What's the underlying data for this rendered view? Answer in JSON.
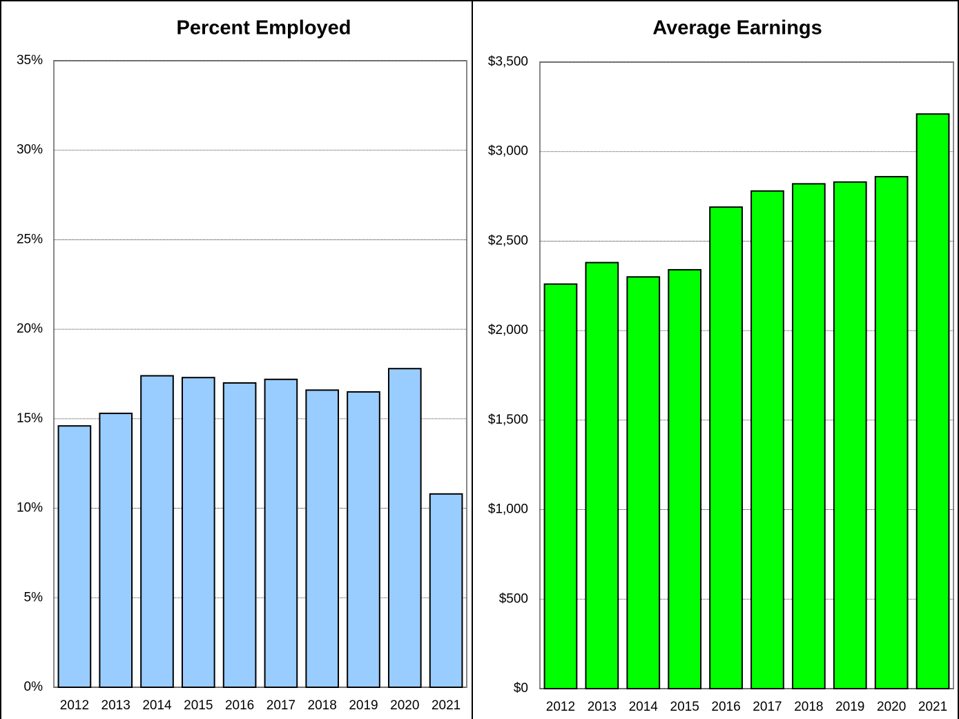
{
  "chart_data": [
    {
      "type": "bar",
      "title": "Percent Employed",
      "categories": [
        "2012",
        "2013",
        "2014",
        "2015",
        "2016",
        "2017",
        "2018",
        "2019",
        "2020",
        "2021"
      ],
      "values": [
        14.6,
        15.3,
        17.4,
        17.3,
        17.0,
        17.2,
        16.6,
        16.5,
        17.8,
        10.8
      ],
      "color": "#99ccff",
      "ylim": [
        0,
        35
      ],
      "yticks": [
        {
          "value": 0,
          "label": "0%"
        },
        {
          "value": 5,
          "label": "5%"
        },
        {
          "value": 10,
          "label": "10%"
        },
        {
          "value": 15,
          "label": "15%"
        },
        {
          "value": 20,
          "label": "20%"
        },
        {
          "value": 25,
          "label": "25%"
        },
        {
          "value": 30,
          "label": "30%"
        },
        {
          "value": 35,
          "label": "35%"
        }
      ],
      "grid": true
    },
    {
      "type": "bar",
      "title": "Average Earnings",
      "categories": [
        "2012",
        "2013",
        "2014",
        "2015",
        "2016",
        "2017",
        "2018",
        "2019",
        "2020",
        "2021"
      ],
      "values": [
        2260,
        2380,
        2300,
        2340,
        2690,
        2780,
        2820,
        2830,
        2860,
        3210
      ],
      "color": "#00ff00",
      "ylim": [
        0,
        3500
      ],
      "yticks": [
        {
          "value": 0,
          "label": "$0"
        },
        {
          "value": 500,
          "label": "$500"
        },
        {
          "value": 1000,
          "label": "$1,000"
        },
        {
          "value": 1500,
          "label": "$1,500"
        },
        {
          "value": 2000,
          "label": "$2,000"
        },
        {
          "value": 2500,
          "label": "$2,500"
        },
        {
          "value": 3000,
          "label": "$3,000"
        },
        {
          "value": 3500,
          "label": "$3,500"
        }
      ],
      "grid": true
    }
  ]
}
